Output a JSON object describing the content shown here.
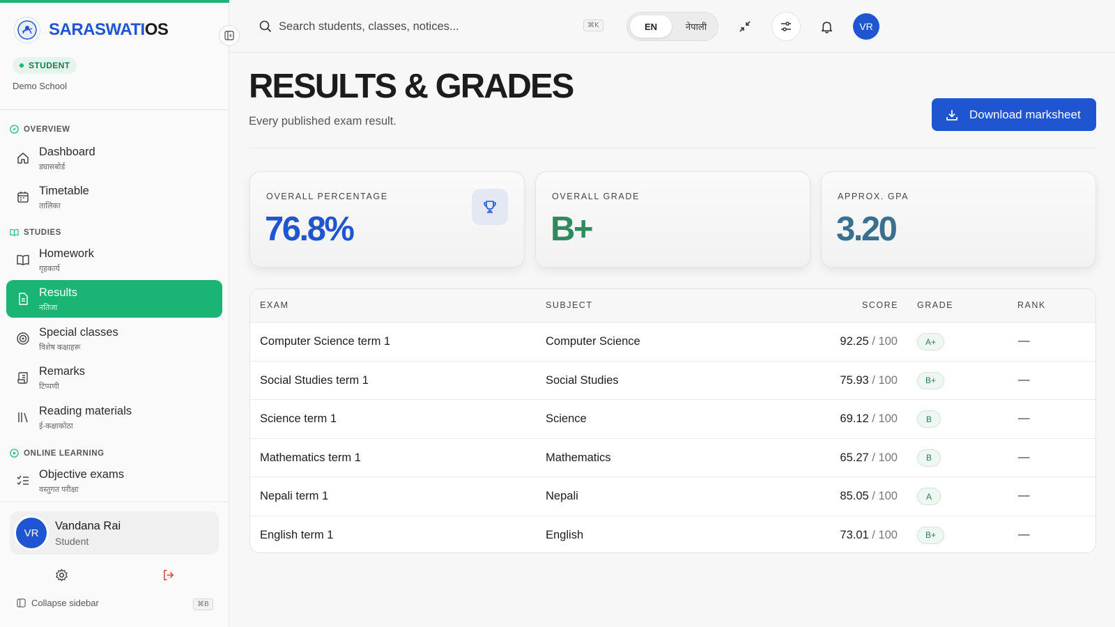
{
  "app": {
    "brand_part1": "SARASWATI",
    "brand_part2": "OS",
    "role_badge": "STUDENT",
    "school": "Demo School",
    "accent_color": "#1ab474",
    "brand_color": "#1f55d1"
  },
  "sidebar": {
    "sections": [
      {
        "label": "OVERVIEW",
        "icon": "compass-icon"
      },
      {
        "label": "STUDIES",
        "icon": "book-open-icon"
      },
      {
        "label": "ONLINE LEARNING",
        "icon": "play-circle-icon"
      }
    ],
    "items": [
      {
        "label": "Dashboard",
        "sub": "ड्यासबोर्ड",
        "icon": "home-icon",
        "active": false
      },
      {
        "label": "Timetable",
        "sub": "तालिका",
        "icon": "calendar-icon",
        "active": false
      },
      {
        "label": "Homework",
        "sub": "गृहकार्य",
        "icon": "book-open-icon",
        "active": false
      },
      {
        "label": "Results",
        "sub": "नतिजा",
        "icon": "document-icon",
        "active": true
      },
      {
        "label": "Special classes",
        "sub": "विशेष कक्षाहरू",
        "icon": "target-icon",
        "active": false
      },
      {
        "label": "Remarks",
        "sub": "टिप्पणी",
        "icon": "scroll-icon",
        "active": false
      },
      {
        "label": "Reading materials",
        "sub": "ई-कक्षाकोठा",
        "icon": "library-icon",
        "active": false
      },
      {
        "label": "Objective exams",
        "sub": "वस्तुगत परीक्षा",
        "icon": "checklist-icon",
        "active": false
      }
    ],
    "user": {
      "initials": "VR",
      "name": "Vandana Rai",
      "role": "Student"
    },
    "collapse_label": "Collapse sidebar",
    "collapse_shortcut": "⌘B"
  },
  "topbar": {
    "search_placeholder": "Search students, classes, notices...",
    "search_shortcut": "⌘K",
    "lang_en": "EN",
    "lang_np": "नेपाली",
    "avatar_initials": "VR"
  },
  "main": {
    "title": "RESULTS & GRADES",
    "subtitle": "Every published exam result.",
    "download_label": "Download marksheet",
    "stats": [
      {
        "label": "OVERALL PERCENTAGE",
        "value": "76.8%",
        "color": "#1f55d1"
      },
      {
        "label": "OVERALL GRADE",
        "value": "B+",
        "color": "#2e8b5e"
      },
      {
        "label": "APPROX. GPA",
        "value": "3.20",
        "color": "#3a6f8f"
      }
    ],
    "table": {
      "headers": [
        "EXAM",
        "SUBJECT",
        "SCORE",
        "GRADE",
        "RANK"
      ],
      "rows": [
        {
          "exam": "Computer Science term 1",
          "subject": "Computer Science",
          "score": "92.25",
          "max": " / 100",
          "grade": "A+",
          "rank": "—"
        },
        {
          "exam": "Social Studies term 1",
          "subject": "Social Studies",
          "score": "75.93",
          "max": " / 100",
          "grade": "B+",
          "rank": "—"
        },
        {
          "exam": "Science term 1",
          "subject": "Science",
          "score": "69.12",
          "max": " / 100",
          "grade": "B",
          "rank": "—"
        },
        {
          "exam": "Mathematics term 1",
          "subject": "Mathematics",
          "score": "65.27",
          "max": " / 100",
          "grade": "B",
          "rank": "—"
        },
        {
          "exam": "Nepali term 1",
          "subject": "Nepali",
          "score": "85.05",
          "max": " / 100",
          "grade": "A",
          "rank": "—"
        },
        {
          "exam": "English term 1",
          "subject": "English",
          "score": "73.01",
          "max": " / 100",
          "grade": "B+",
          "rank": "—"
        }
      ]
    }
  }
}
